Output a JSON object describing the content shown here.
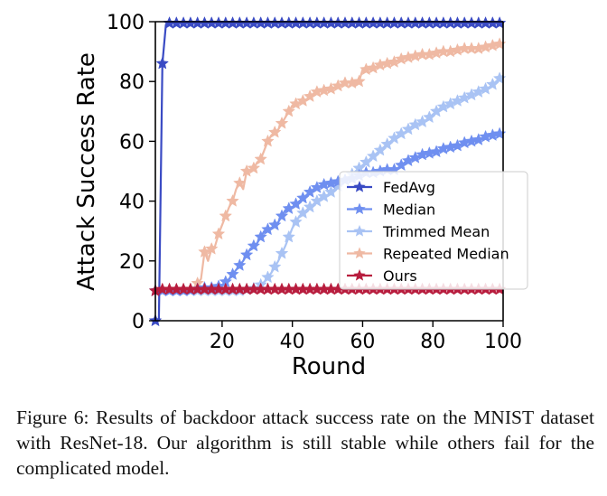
{
  "chart_data": {
    "type": "line",
    "title": "",
    "xlabel": "Round",
    "ylabel": "Attack Success Rate",
    "xlim": [
      1,
      100
    ],
    "ylim": [
      0,
      100
    ],
    "xticks": [
      20,
      40,
      60,
      80,
      100
    ],
    "yticks": [
      0,
      20,
      40,
      60,
      80,
      100
    ],
    "grid": false,
    "legend_position": "lower-right",
    "marker": "star",
    "series": [
      {
        "name": "FedAvg",
        "color": "#3a4bc4",
        "points": [
          [
            1,
            0
          ],
          [
            2,
            0
          ],
          [
            3,
            86
          ],
          [
            4,
            99
          ],
          [
            5,
            99.5
          ],
          [
            10,
            99.5
          ],
          [
            30,
            99.5
          ],
          [
            60,
            99.5
          ],
          [
            100,
            99.5
          ]
        ]
      },
      {
        "name": "Median",
        "color": "#6f8ff0",
        "points": [
          [
            1,
            10
          ],
          [
            5,
            10
          ],
          [
            10,
            10
          ],
          [
            15,
            11
          ],
          [
            18,
            11
          ],
          [
            20,
            12
          ],
          [
            22,
            14
          ],
          [
            24,
            17
          ],
          [
            26,
            20
          ],
          [
            28,
            24
          ],
          [
            30,
            26
          ],
          [
            32,
            30
          ],
          [
            34,
            31
          ],
          [
            36,
            33
          ],
          [
            38,
            37
          ],
          [
            40,
            38
          ],
          [
            42,
            40
          ],
          [
            44,
            42
          ],
          [
            46,
            44
          ],
          [
            48,
            45
          ],
          [
            50,
            46
          ],
          [
            52,
            46
          ],
          [
            54,
            47
          ],
          [
            56,
            47
          ],
          [
            58,
            48
          ],
          [
            60,
            49
          ],
          [
            62,
            50
          ],
          [
            64,
            49
          ],
          [
            66,
            51
          ],
          [
            68,
            50
          ],
          [
            70,
            51
          ],
          [
            72,
            53
          ],
          [
            74,
            54
          ],
          [
            76,
            55
          ],
          [
            78,
            56
          ],
          [
            80,
            56
          ],
          [
            82,
            57
          ],
          [
            84,
            58
          ],
          [
            86,
            58
          ],
          [
            88,
            59
          ],
          [
            90,
            60
          ],
          [
            92,
            60
          ],
          [
            94,
            61
          ],
          [
            96,
            62
          ],
          [
            98,
            62
          ],
          [
            100,
            63
          ]
        ]
      },
      {
        "name": "Trimmed Mean",
        "color": "#a9c3f4",
        "points": [
          [
            1,
            10
          ],
          [
            10,
            10
          ],
          [
            15,
            10
          ],
          [
            20,
            10
          ],
          [
            25,
            10
          ],
          [
            30,
            11
          ],
          [
            32,
            13
          ],
          [
            34,
            16
          ],
          [
            36,
            20
          ],
          [
            38,
            25
          ],
          [
            40,
            31
          ],
          [
            42,
            35
          ],
          [
            44,
            37
          ],
          [
            46,
            39
          ],
          [
            48,
            41
          ],
          [
            50,
            42
          ],
          [
            52,
            44
          ],
          [
            54,
            46
          ],
          [
            56,
            48
          ],
          [
            58,
            50
          ],
          [
            60,
            52
          ],
          [
            62,
            54
          ],
          [
            64,
            56
          ],
          [
            66,
            58
          ],
          [
            68,
            60
          ],
          [
            70,
            62
          ],
          [
            72,
            63
          ],
          [
            74,
            65
          ],
          [
            76,
            66
          ],
          [
            78,
            67
          ],
          [
            80,
            69
          ],
          [
            82,
            71
          ],
          [
            84,
            72
          ],
          [
            86,
            73
          ],
          [
            88,
            74
          ],
          [
            90,
            75
          ],
          [
            92,
            76
          ],
          [
            94,
            77
          ],
          [
            96,
            78
          ],
          [
            98,
            80
          ],
          [
            100,
            82
          ]
        ]
      },
      {
        "name": "Repeated Median",
        "color": "#efb9a3",
        "points": [
          [
            1,
            10
          ],
          [
            5,
            10
          ],
          [
            10,
            10
          ],
          [
            12,
            11
          ],
          [
            14,
            14
          ],
          [
            15,
            23
          ],
          [
            16,
            20
          ],
          [
            17,
            24
          ],
          [
            18,
            25
          ],
          [
            19,
            29
          ],
          [
            20,
            32
          ],
          [
            21,
            35
          ],
          [
            22,
            38
          ],
          [
            23,
            40
          ],
          [
            24,
            44
          ],
          [
            25,
            46
          ],
          [
            26,
            44
          ],
          [
            27,
            50
          ],
          [
            28,
            50
          ],
          [
            29,
            51
          ],
          [
            30,
            53
          ],
          [
            31,
            54
          ],
          [
            32,
            57
          ],
          [
            33,
            60
          ],
          [
            34,
            62
          ],
          [
            35,
            63
          ],
          [
            36,
            64
          ],
          [
            37,
            66
          ],
          [
            38,
            68
          ],
          [
            39,
            70
          ],
          [
            40,
            72
          ],
          [
            42,
            73
          ],
          [
            44,
            74
          ],
          [
            46,
            76
          ],
          [
            48,
            77
          ],
          [
            50,
            77
          ],
          [
            52,
            78
          ],
          [
            54,
            79
          ],
          [
            56,
            80
          ],
          [
            58,
            79
          ],
          [
            59,
            80
          ],
          [
            60,
            84
          ],
          [
            62,
            84
          ],
          [
            64,
            85
          ],
          [
            66,
            86
          ],
          [
            68,
            86
          ],
          [
            70,
            87
          ],
          [
            72,
            88
          ],
          [
            74,
            88
          ],
          [
            76,
            89
          ],
          [
            78,
            89
          ],
          [
            80,
            89
          ],
          [
            82,
            90
          ],
          [
            84,
            90
          ],
          [
            86,
            90
          ],
          [
            88,
            91
          ],
          [
            90,
            91
          ],
          [
            92,
            91
          ],
          [
            94,
            91
          ],
          [
            96,
            92
          ],
          [
            98,
            92
          ],
          [
            100,
            93
          ]
        ]
      },
      {
        "name": "Ours",
        "color": "#b81d3e",
        "points": [
          [
            1,
            10
          ],
          [
            2,
            10
          ],
          [
            3,
            10.5
          ],
          [
            5,
            10.5
          ],
          [
            10,
            10.5
          ],
          [
            20,
            10.5
          ],
          [
            30,
            10.5
          ],
          [
            40,
            10.5
          ],
          [
            50,
            10.5
          ],
          [
            60,
            10.5
          ],
          [
            70,
            10.5
          ],
          [
            80,
            10.5
          ],
          [
            90,
            10.5
          ],
          [
            100,
            10.5
          ]
        ]
      }
    ]
  },
  "caption": {
    "label": "Figure 6:",
    "text": "Results of backdoor attack success rate on the MNIST dataset with ResNet-18. Our algorithm is still stable while others fail for the complicated model."
  }
}
